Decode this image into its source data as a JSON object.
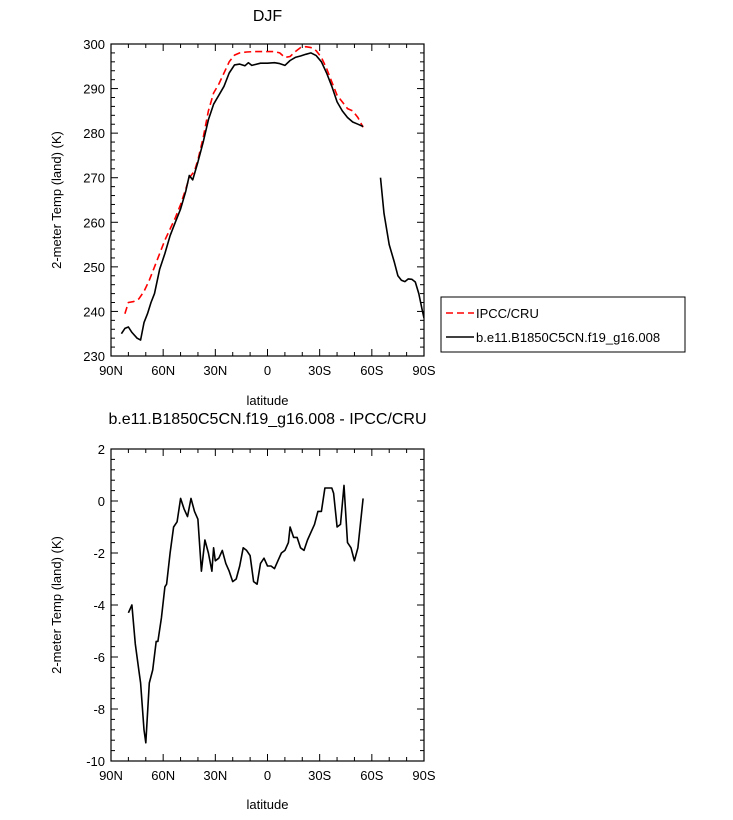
{
  "chart_data": [
    {
      "type": "line",
      "title": "DJF",
      "xlabel": "latitude",
      "ylabel": "2-meter Temp (land) (K)",
      "xlim": [
        90,
        -90
      ],
      "ylim": [
        230,
        300
      ],
      "x_ticks": [
        90,
        60,
        30,
        0,
        -30,
        -60,
        -90
      ],
      "x_tick_labels": [
        "90N",
        "60N",
        "30N",
        "0",
        "30S",
        "60S",
        "90S"
      ],
      "y_ticks": [
        230,
        240,
        250,
        260,
        270,
        280,
        290,
        300
      ],
      "y_tick_labels": [
        "230",
        "240",
        "250",
        "260",
        "270",
        "280",
        "290",
        "300"
      ],
      "grid": false,
      "legend_position": "right",
      "series": [
        {
          "name": "IPCC/CRU",
          "color": "#ff0000",
          "dash": "dashed",
          "segments": [
            [
              [
                82,
                239.5
              ],
              [
                80,
                242
              ],
              [
                77,
                242.2
              ],
              [
                74,
                242.8
              ],
              [
                71,
                244.5
              ],
              [
                68,
                247
              ],
              [
                65,
                250
              ],
              [
                62,
                253
              ],
              [
                59,
                256
              ],
              [
                56,
                258.5
              ],
              [
                53,
                261
              ],
              [
                50,
                264
              ],
              [
                47,
                267.5
              ],
              [
                45,
                270
              ],
              [
                42,
                271.5
              ],
              [
                40,
                274
              ],
              [
                37,
                279
              ],
              [
                34,
                285
              ],
              [
                31,
                289
              ],
              [
                28,
                291
              ],
              [
                25,
                293.5
              ],
              [
                22,
                296
              ],
              [
                19,
                297.5
              ],
              [
                16,
                298
              ],
              [
                12,
                298.2
              ],
              [
                8,
                298.3
              ],
              [
                4,
                298.3
              ],
              [
                0,
                298.3
              ],
              [
                -4,
                298.3
              ],
              [
                -7,
                298
              ],
              [
                -10,
                297
              ],
              [
                -13,
                297.2
              ],
              [
                -16,
                298.3
              ],
              [
                -19,
                299.2
              ],
              [
                -22,
                299.4
              ],
              [
                -25,
                299.2
              ],
              [
                -28,
                298.5
              ],
              [
                -31,
                297
              ],
              [
                -34,
                294.5
              ],
              [
                -37,
                291.5
              ],
              [
                -40,
                288.5
              ],
              [
                -43,
                287
              ],
              [
                -46,
                285.5
              ],
              [
                -49,
                285
              ],
              [
                -52,
                283.5
              ],
              [
                -55,
                281.3
              ]
            ]
          ]
        },
        {
          "name": "b.e11.B1850C5CN.f19_g16.008",
          "color": "#000000",
          "dash": "solid",
          "segments": [
            [
              [
                84,
                235
              ],
              [
                82,
                236.2
              ],
              [
                80,
                236.5
              ],
              [
                78,
                235.3
              ],
              [
                75,
                234
              ],
              [
                73,
                233.6
              ],
              [
                71,
                237.5
              ],
              [
                69,
                239.5
              ],
              [
                67,
                242
              ],
              [
                65,
                244
              ],
              [
                62,
                249.5
              ],
              [
                59,
                253
              ],
              [
                56,
                257
              ],
              [
                53,
                260
              ],
              [
                50,
                263
              ],
              [
                47,
                267
              ],
              [
                45,
                270.5
              ],
              [
                43,
                269.5
              ],
              [
                40,
                273.5
              ],
              [
                37,
                278
              ],
              [
                34,
                283
              ],
              [
                31,
                286.5
              ],
              [
                28,
                288.5
              ],
              [
                25,
                290.5
              ],
              [
                22,
                293.5
              ],
              [
                19,
                295.3
              ],
              [
                16,
                295.5
              ],
              [
                13,
                295.1
              ],
              [
                11,
                295.8
              ],
              [
                9,
                295.2
              ],
              [
                7,
                295.4
              ],
              [
                4,
                295.7
              ],
              [
                0,
                295.7
              ],
              [
                -4,
                295.8
              ],
              [
                -7,
                295.6
              ],
              [
                -10,
                295.2
              ],
              [
                -13,
                296.3
              ],
              [
                -16,
                297
              ],
              [
                -19,
                297.3
              ],
              [
                -22,
                297.7
              ],
              [
                -25,
                298
              ],
              [
                -28,
                297.4
              ],
              [
                -31,
                296
              ],
              [
                -34,
                293.5
              ],
              [
                -37,
                290.5
              ],
              [
                -40,
                287
              ],
              [
                -43,
                285
              ],
              [
                -46,
                283.5
              ],
              [
                -49,
                282.5
              ],
              [
                -52,
                282
              ],
              [
                -55,
                281.5
              ]
            ],
            [
              [
                -65,
                270
              ],
              [
                -67,
                262
              ],
              [
                -70,
                255
              ],
              [
                -73,
                251
              ],
              [
                -75,
                248
              ],
              [
                -77,
                247
              ],
              [
                -79,
                246.7
              ],
              [
                -81,
                247.3
              ],
              [
                -83,
                247.2
              ],
              [
                -85,
                246.6
              ],
              [
                -87,
                244
              ],
              [
                -89,
                240.2
              ],
              [
                -90,
                238.5
              ]
            ]
          ]
        }
      ]
    },
    {
      "type": "line",
      "title": "b.e11.B1850C5CN.f19_g16.008 - IPCC/CRU",
      "xlabel": "latitude",
      "ylabel": "2-meter Temp (land) (K)",
      "xlim": [
        90,
        -90
      ],
      "ylim": [
        -10,
        2
      ],
      "x_ticks": [
        90,
        60,
        30,
        0,
        -30,
        -60,
        -90
      ],
      "x_tick_labels": [
        "90N",
        "60N",
        "30N",
        "0",
        "30S",
        "60S",
        "90S"
      ],
      "y_ticks": [
        -10,
        -8,
        -6,
        -4,
        -2,
        0,
        2
      ],
      "y_tick_labels": [
        "-10",
        "-8",
        "-6",
        "-4",
        "-2",
        "0",
        "2"
      ],
      "grid": false,
      "series": [
        {
          "color": "#000000",
          "dash": "solid",
          "segments": [
            [
              [
                80,
                -4.3
              ],
              [
                78,
                -4
              ],
              [
                76,
                -5.5
              ],
              [
                74,
                -6.5
              ],
              [
                73,
                -7
              ],
              [
                71,
                -8.8
              ],
              [
                70,
                -9.3
              ],
              [
                68,
                -7
              ],
              [
                66,
                -6.5
              ],
              [
                64,
                -5.4
              ],
              [
                63,
                -5.4
              ],
              [
                61,
                -4.5
              ],
              [
                59,
                -3.3
              ],
              [
                58,
                -3.2
              ],
              [
                56,
                -2
              ],
              [
                54,
                -1
              ],
              [
                52,
                -0.8
              ],
              [
                50,
                0.1
              ],
              [
                48,
                -0.3
              ],
              [
                46,
                -0.6
              ],
              [
                44,
                0.1
              ],
              [
                42,
                -0.4
              ],
              [
                40,
                -0.7
              ],
              [
                38,
                -2.7
              ],
              [
                36,
                -1.5
              ],
              [
                34,
                -2
              ],
              [
                32,
                -2.7
              ],
              [
                31,
                -1.8
              ],
              [
                30,
                -2.3
              ],
              [
                28,
                -2.2
              ],
              [
                26,
                -1.9
              ],
              [
                24,
                -2.4
              ],
              [
                22,
                -2.7
              ],
              [
                20,
                -3.1
              ],
              [
                18,
                -3
              ],
              [
                16,
                -2.5
              ],
              [
                14,
                -1.8
              ],
              [
                12,
                -1.9
              ],
              [
                10,
                -2.1
              ],
              [
                8,
                -3.1
              ],
              [
                6,
                -3.2
              ],
              [
                4,
                -2.4
              ],
              [
                2,
                -2.2
              ],
              [
                0,
                -2.5
              ],
              [
                -2,
                -2.5
              ],
              [
                -4,
                -2.6
              ],
              [
                -6,
                -2.3
              ],
              [
                -8,
                -2
              ],
              [
                -10,
                -1.9
              ],
              [
                -12,
                -1.6
              ],
              [
                -13,
                -1
              ],
              [
                -15,
                -1.4
              ],
              [
                -17,
                -1.4
              ],
              [
                -19,
                -1.8
              ],
              [
                -21,
                -1.9
              ],
              [
                -23,
                -1.5
              ],
              [
                -25,
                -1.2
              ],
              [
                -27,
                -0.9
              ],
              [
                -29,
                -0.4
              ],
              [
                -31,
                -0.4
              ],
              [
                -33,
                0.5
              ],
              [
                -35,
                0.5
              ],
              [
                -37,
                0.5
              ],
              [
                -38,
                0.3
              ],
              [
                -40,
                -1
              ],
              [
                -42,
                -0.9
              ],
              [
                -44,
                0.6
              ],
              [
                -46,
                -1.6
              ],
              [
                -48,
                -1.8
              ],
              [
                -50,
                -2.3
              ],
              [
                -52,
                -1.8
              ],
              [
                -55,
                0.1
              ]
            ]
          ]
        }
      ]
    }
  ]
}
